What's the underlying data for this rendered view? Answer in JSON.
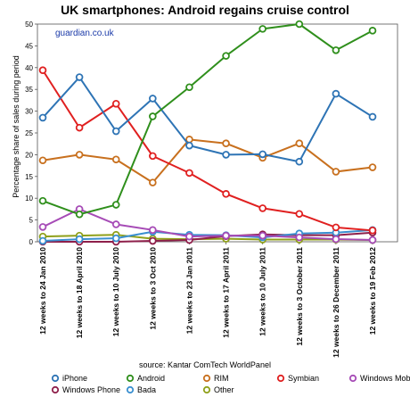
{
  "chart_data": {
    "type": "line",
    "title": "UK smartphones: Android regains cruise control",
    "subtitle": "guardian.co.uk",
    "ylabel": "Percentage share of sales during period",
    "xlabel": "",
    "source": "source: Kantar ComTech WorldPanel",
    "ylim": [
      0,
      50
    ],
    "yticks": [
      0,
      5,
      10,
      15,
      20,
      25,
      30,
      35,
      40,
      45,
      50
    ],
    "grid": false,
    "legend_position": "bottom",
    "categories": [
      "12 weeks to 24 Jan 2010",
      "12 weeks to 18 April 2010",
      "12 weeks to 10 July 2010",
      "12 weeks to 3 Oct 2010",
      "12 weeks to 23 Jan 2011",
      "12 weeks to 17 April 2011",
      "12 weeks to 10 July 2011",
      "12 weeks to 3 October 2011",
      "12 weeks to 26 December 2011",
      "12 weeks to 19 Feb 2012"
    ],
    "series": [
      {
        "name": "iPhone",
        "color": "#2e74b5",
        "values": [
          28.5,
          37.8,
          25.4,
          32.9,
          22.1,
          20.0,
          20.1,
          18.4,
          34.0,
          28.7
        ]
      },
      {
        "name": "Android",
        "color": "#2f8f1c",
        "values": [
          9.4,
          6.3,
          8.5,
          28.8,
          35.5,
          42.7,
          48.9,
          50.0,
          44.0,
          48.5
        ]
      },
      {
        "name": "RIM",
        "color": "#c8701e",
        "values": [
          18.7,
          20.0,
          18.9,
          13.6,
          23.5,
          22.6,
          19.3,
          22.6,
          16.1,
          17.1
        ]
      },
      {
        "name": "Symbian",
        "color": "#e02020",
        "values": [
          39.4,
          26.2,
          31.7,
          19.7,
          15.8,
          11.0,
          7.7,
          6.4,
          3.3,
          2.6
        ]
      },
      {
        "name": "Windows Mobile",
        "color": "#a64bb6",
        "values": [
          3.4,
          7.5,
          4.0,
          2.7,
          1.2,
          1.4,
          1.4,
          1.0,
          0.6,
          0.4
        ]
      },
      {
        "name": "Windows Phone",
        "color": "#8e1f4a",
        "values": [
          0.0,
          0.0,
          0.0,
          0.2,
          0.4,
          1.3,
          1.7,
          1.5,
          1.5,
          2.1
        ]
      },
      {
        "name": "Bada",
        "color": "#3a8fd0",
        "values": [
          0.2,
          0.6,
          0.8,
          2.3,
          1.6,
          1.5,
          1.0,
          1.9,
          2.1,
          2.7
        ]
      },
      {
        "name": "Other",
        "color": "#8fa01a",
        "values": [
          1.2,
          1.4,
          1.6,
          0.7,
          0.6,
          0.7,
          0.5,
          0.5,
          0.5,
          0.4
        ]
      }
    ]
  }
}
